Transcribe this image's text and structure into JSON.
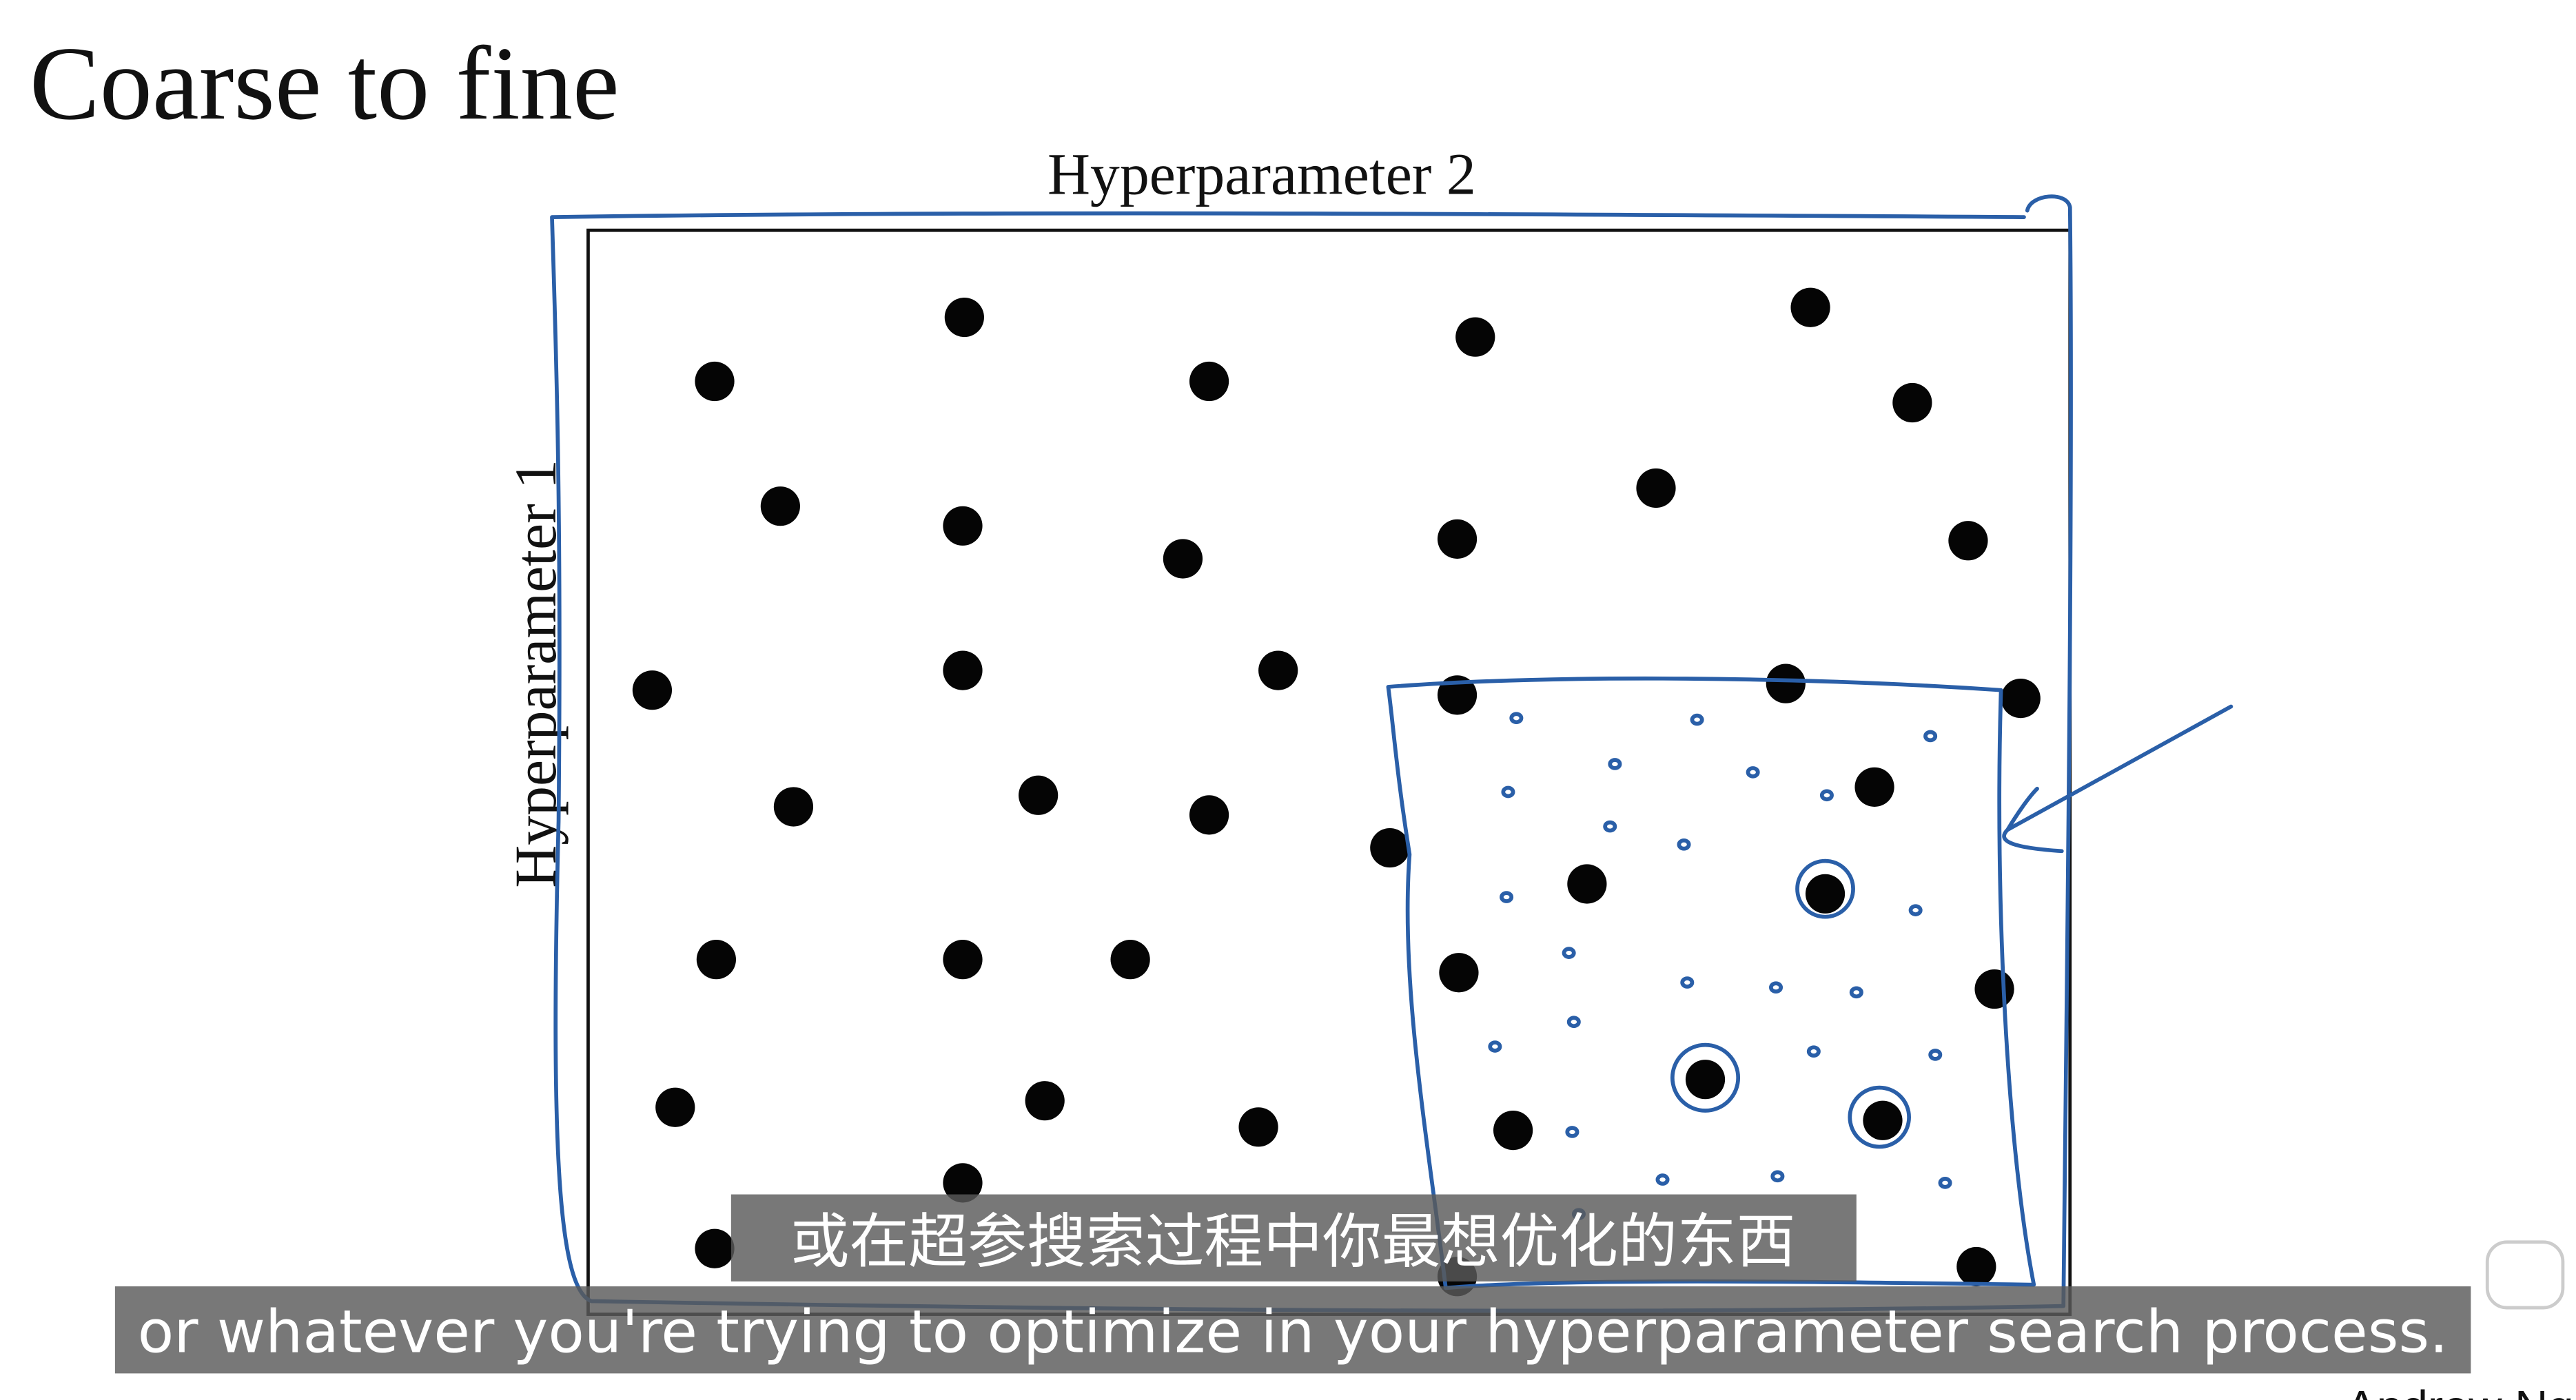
{
  "slide": {
    "title": "Coarse to fine",
    "x_axis_label": "Hyperparameter 2",
    "y_axis_label": "Hyperparameter 1",
    "credit": "Andrew Ng"
  },
  "subtitles": {
    "chinese": "或在超参搜索过程中你最想优化的东西",
    "english": "or whatever you're trying to optimize in your hyperparameter search process."
  }
}
